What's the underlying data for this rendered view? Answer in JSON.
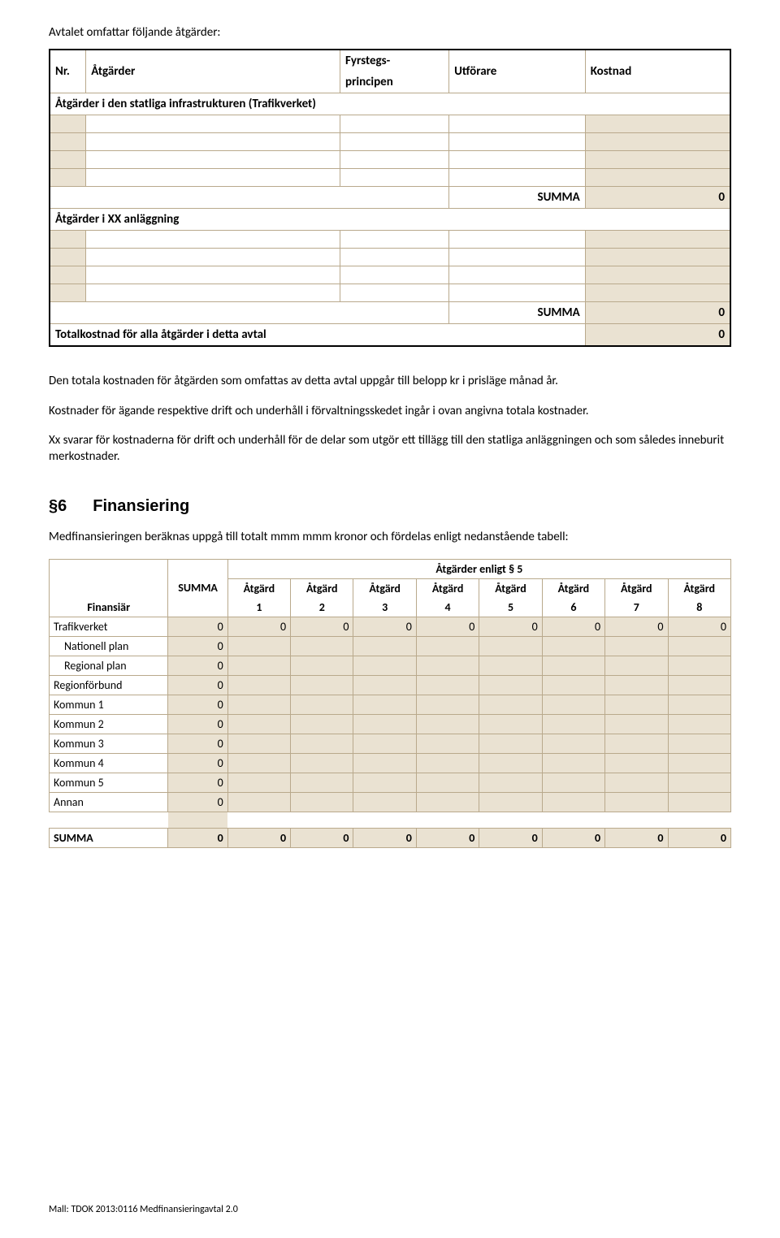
{
  "intro": "Avtalet omfattar följande åtgärder:",
  "table1": {
    "headers": {
      "nr": "Nr.",
      "atgarder": "Åtgärder",
      "fyrstegs1": "Fyrstegs-",
      "fyrstegs2": "principen",
      "utforare": "Utförare",
      "kostnad": "Kostnad"
    },
    "section1": "Åtgärder i den statliga infrastrukturen (Trafikverket)",
    "section2": "Åtgärder i XX anläggning",
    "summa1_label": "SUMMA",
    "summa1_value": "0",
    "summa2_label": "SUMMA",
    "summa2_value": "0",
    "total_label": "Totalkostnad för alla åtgärder i detta avtal",
    "total_value": "0"
  },
  "para1": "Den totala kostnaden för åtgärden som omfattas av detta avtal uppgår till belopp kr i prisläge månad år.",
  "para2": "Kostnader för ägande respektive drift och underhåll i förvaltningsskedet ingår i ovan angivna totala kostnader.",
  "para3": "Xx svarar för kostnaderna för drift och underhåll för de delar som utgör ett tillägg till den statliga anläggningen och som således inneburit merkostnader.",
  "section6": {
    "num": "§6",
    "title": "Finansiering"
  },
  "para4": "Medfinansieringen beräknas uppgå till totalt mmm mmm kronor och fördelas enligt nedanstående tabell:",
  "table2": {
    "group_header": "Åtgärder enligt § 5",
    "col_finansiar": "Finansiär",
    "col_summa": "SUMMA",
    "atg_prefix": "Åtgärd",
    "atg_nums": [
      "1",
      "2",
      "3",
      "4",
      "5",
      "6",
      "7",
      "8"
    ],
    "rows": [
      {
        "label": "Trafikverket",
        "summa": "0",
        "indent": false,
        "atg": [
          "0",
          "0",
          "0",
          "0",
          "0",
          "0",
          "0",
          "0"
        ]
      },
      {
        "label": "Nationell plan",
        "summa": "0",
        "indent": true,
        "atg": [
          "",
          "",
          "",
          "",
          "",
          "",
          "",
          ""
        ]
      },
      {
        "label": "Regional plan",
        "summa": "0",
        "indent": true,
        "atg": [
          "",
          "",
          "",
          "",
          "",
          "",
          "",
          ""
        ]
      },
      {
        "label": "Regionförbund",
        "summa": "0",
        "indent": false,
        "atg": [
          "",
          "",
          "",
          "",
          "",
          "",
          "",
          ""
        ]
      },
      {
        "label": "Kommun 1",
        "summa": "0",
        "indent": false,
        "atg": [
          "",
          "",
          "",
          "",
          "",
          "",
          "",
          ""
        ]
      },
      {
        "label": "Kommun 2",
        "summa": "0",
        "indent": false,
        "atg": [
          "",
          "",
          "",
          "",
          "",
          "",
          "",
          ""
        ]
      },
      {
        "label": "Kommun 3",
        "summa": "0",
        "indent": false,
        "atg": [
          "",
          "",
          "",
          "",
          "",
          "",
          "",
          ""
        ]
      },
      {
        "label": "Kommun 4",
        "summa": "0",
        "indent": false,
        "atg": [
          "",
          "",
          "",
          "",
          "",
          "",
          "",
          ""
        ]
      },
      {
        "label": "Kommun 5",
        "summa": "0",
        "indent": false,
        "atg": [
          "",
          "",
          "",
          "",
          "",
          "",
          "",
          ""
        ]
      },
      {
        "label": "Annan",
        "summa": "0",
        "indent": false,
        "atg": [
          "",
          "",
          "",
          "",
          "",
          "",
          "",
          ""
        ]
      }
    ],
    "total": {
      "label": "SUMMA",
      "summa": "0",
      "atg": [
        "0",
        "0",
        "0",
        "0",
        "0",
        "0",
        "0",
        "0"
      ]
    }
  },
  "footer": "Mall: TDOK 2013:0116 Medfinansieringavtal 2.0",
  "colors": {
    "beige": "#eae2d2",
    "border": "#b9a98c"
  }
}
